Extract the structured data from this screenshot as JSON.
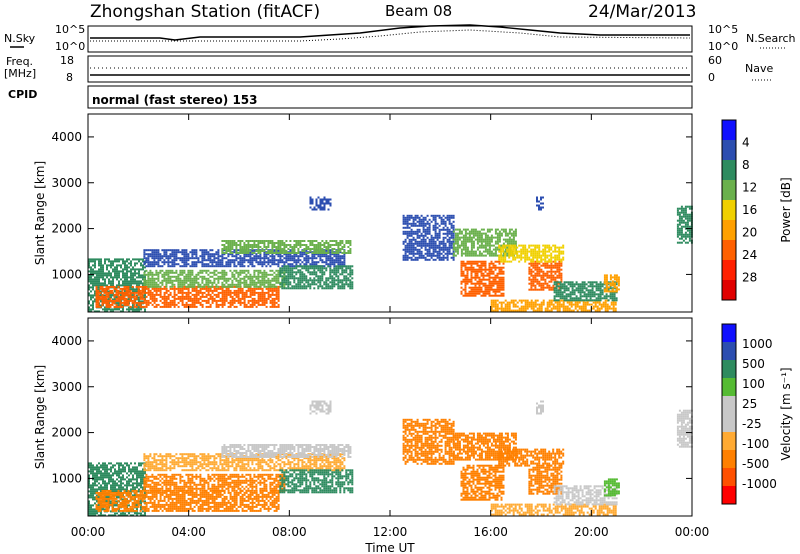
{
  "header": {
    "station": "Zhongshan Station (fitACF)",
    "beam": "Beam 08",
    "date": "24/Mar/2013"
  },
  "top_panels": {
    "nsky_label": "N.Sky",
    "nsearch_label": "N.Search",
    "freq_label_1": "Freq.",
    "freq_label_2": "[MHz]",
    "nave_label": "Nave",
    "cpid_label": "CPID",
    "cpid_text": "normal (fast stereo) 153",
    "noise_ticks": [
      "10^5",
      "10^0"
    ],
    "freq_ticks": [
      "18",
      "8"
    ],
    "nave_ticks": [
      "60",
      "0"
    ]
  },
  "colors": {
    "power": [
      "#1010ff",
      "#2c4eb0",
      "#2e8b5f",
      "#6ab04c",
      "#f0d000",
      "#ffa000",
      "#ff6000",
      "#ff2000",
      "#e00000"
    ],
    "velocity": [
      "#1010ff",
      "#2c4eb0",
      "#2e8b5f",
      "#55bb33",
      "#c8c8c8",
      "#c8c8c8",
      "#ffaa33",
      "#ff8000",
      "#ff5000",
      "#ff0000"
    ]
  },
  "chart_data": [
    {
      "type": "heatmap",
      "panel": "power",
      "ylabel": "Slant Range [km]",
      "xlabel": "",
      "x_ticks": [
        "00:00",
        "04:00",
        "08:00",
        "12:00",
        "16:00",
        "20:00",
        "00:00"
      ],
      "y_ticks": [
        1000,
        2000,
        3000,
        4000
      ],
      "xlim_hours": [
        0,
        24
      ],
      "ylim_km": [
        180,
        4500
      ],
      "colorbar_label": "Power [dB]",
      "colorbar_ticks": [
        "4",
        "8",
        "12",
        "16",
        "20",
        "24",
        "28"
      ],
      "regions": [
        {
          "t0": 0.0,
          "t1": 2.3,
          "r0": 200,
          "r1": 1350,
          "v": 12
        },
        {
          "t0": 0.3,
          "t1": 7.6,
          "r0": 300,
          "r1": 750,
          "v": 27
        },
        {
          "t0": 2.2,
          "t1": 7.8,
          "r0": 750,
          "r1": 1100,
          "v": 14
        },
        {
          "t0": 2.2,
          "t1": 10.2,
          "r0": 1200,
          "r1": 1550,
          "v": 8
        },
        {
          "t0": 5.3,
          "t1": 10.4,
          "r0": 1450,
          "r1": 1750,
          "v": 16
        },
        {
          "t0": 7.6,
          "t1": 10.5,
          "r0": 700,
          "r1": 1200,
          "v": 10
        },
        {
          "t0": 8.8,
          "t1": 9.6,
          "r0": 2400,
          "r1": 2700,
          "v": 6
        },
        {
          "t0": 12.5,
          "t1": 14.5,
          "r0": 1300,
          "r1": 2300,
          "v": 8
        },
        {
          "t0": 14.5,
          "t1": 17.0,
          "r0": 1400,
          "r1": 2000,
          "v": 14
        },
        {
          "t0": 14.8,
          "t1": 16.5,
          "r0": 550,
          "r1": 1300,
          "v": 26
        },
        {
          "t0": 17.5,
          "t1": 18.8,
          "r0": 650,
          "r1": 1300,
          "v": 27
        },
        {
          "t0": 16.3,
          "t1": 18.9,
          "r0": 1300,
          "r1": 1650,
          "v": 18
        },
        {
          "t0": 16.0,
          "t1": 21.0,
          "r0": 200,
          "r1": 450,
          "v": 22
        },
        {
          "t0": 18.5,
          "t1": 21.0,
          "r0": 450,
          "r1": 850,
          "v": 12
        },
        {
          "t0": 20.5,
          "t1": 21.1,
          "r0": 650,
          "r1": 1000,
          "v": 24
        },
        {
          "t0": 17.8,
          "t1": 18.1,
          "r0": 2400,
          "r1": 2700,
          "v": 6
        },
        {
          "t0": 23.4,
          "t1": 24.0,
          "r0": 1700,
          "r1": 2500,
          "v": 10
        }
      ]
    },
    {
      "type": "heatmap",
      "panel": "velocity",
      "ylabel": "Slant Range [km]",
      "xlabel": "Time UT",
      "x_ticks": [
        "00:00",
        "04:00",
        "08:00",
        "12:00",
        "16:00",
        "20:00",
        "00:00"
      ],
      "y_ticks": [
        1000,
        2000,
        3000,
        4000
      ],
      "xlim_hours": [
        0,
        24
      ],
      "ylim_km": [
        180,
        4500
      ],
      "colorbar_label": "Velocity [m s⁻¹]",
      "colorbar_ticks": [
        "1000",
        "500",
        "100",
        "25",
        "-25",
        "-100",
        "-500",
        "-1000"
      ],
      "regions": [
        {
          "t0": 0.0,
          "t1": 2.3,
          "r0": 200,
          "r1": 1350,
          "v": 300
        },
        {
          "t0": 0.3,
          "t1": 7.6,
          "r0": 300,
          "r1": 750,
          "v": -150
        },
        {
          "t0": 2.2,
          "t1": 7.8,
          "r0": 750,
          "r1": 1100,
          "v": -300
        },
        {
          "t0": 2.2,
          "t1": 10.2,
          "r0": 1200,
          "r1": 1550,
          "v": -60
        },
        {
          "t0": 5.3,
          "t1": 10.4,
          "r0": 1450,
          "r1": 1750,
          "v": 0
        },
        {
          "t0": 7.6,
          "t1": 10.5,
          "r0": 700,
          "r1": 1200,
          "v": 400
        },
        {
          "t0": 8.8,
          "t1": 9.6,
          "r0": 2400,
          "r1": 2700,
          "v": 0
        },
        {
          "t0": 12.5,
          "t1": 14.5,
          "r0": 1300,
          "r1": 2300,
          "v": -200
        },
        {
          "t0": 14.5,
          "t1": 17.0,
          "r0": 1400,
          "r1": 2000,
          "v": -300
        },
        {
          "t0": 14.8,
          "t1": 16.5,
          "r0": 550,
          "r1": 1300,
          "v": -200
        },
        {
          "t0": 17.5,
          "t1": 18.8,
          "r0": 650,
          "r1": 1300,
          "v": -250
        },
        {
          "t0": 16.3,
          "t1": 18.9,
          "r0": 1300,
          "r1": 1650,
          "v": -150
        },
        {
          "t0": 16.0,
          "t1": 21.0,
          "r0": 200,
          "r1": 450,
          "v": -80
        },
        {
          "t0": 18.5,
          "t1": 21.0,
          "r0": 450,
          "r1": 850,
          "v": 0
        },
        {
          "t0": 20.5,
          "t1": 21.1,
          "r0": 650,
          "r1": 1000,
          "v": 40
        },
        {
          "t0": 17.8,
          "t1": 18.1,
          "r0": 2400,
          "r1": 2700,
          "v": 0
        },
        {
          "t0": 23.4,
          "t1": 24.0,
          "r0": 1700,
          "r1": 2500,
          "v": 0
        }
      ]
    }
  ]
}
